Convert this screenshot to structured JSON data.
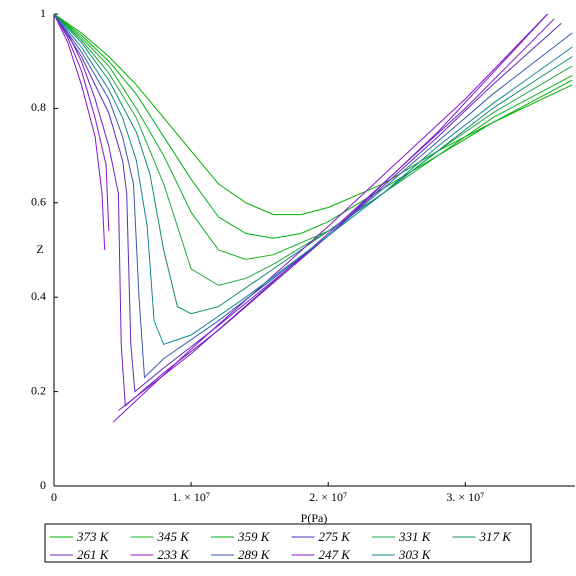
{
  "chart_data": {
    "type": "line",
    "x_label": "P(Pa)",
    "y_label": "Z",
    "xlim": [
      0,
      38000000
    ],
    "ylim": [
      0,
      1
    ],
    "xticks": [
      0,
      {
        "value": 10000000,
        "label": "1. × 10⁷"
      },
      {
        "value": 20000000,
        "label": "2. × 10⁷"
      },
      {
        "value": 30000000,
        "label": "3. × 10⁷"
      }
    ],
    "yticks": [
      0,
      0.2,
      0.4,
      0.6,
      0.8,
      1
    ],
    "legend": "bottom",
    "series": [
      {
        "name": "373 K",
        "color": "#00b000",
        "x": [
          0,
          2000000,
          4000000,
          6000000,
          8000000,
          10000000,
          12000000,
          14000000,
          16000000,
          18000000,
          20000000,
          24000000,
          28000000,
          32000000,
          37800000
        ],
        "values": [
          1,
          0.96,
          0.91,
          0.85,
          0.78,
          0.71,
          0.64,
          0.6,
          0.575,
          0.575,
          0.59,
          0.64,
          0.71,
          0.77,
          0.85
        ]
      },
      {
        "name": "345 K",
        "color": "#10b020",
        "x": [
          0,
          2000000,
          4000000,
          6000000,
          8000000,
          10000000,
          12000000,
          14000000,
          16000000,
          20000000,
          24000000,
          28000000,
          32000000,
          37800000
        ],
        "values": [
          1,
          0.95,
          0.89,
          0.8,
          0.7,
          0.58,
          0.5,
          0.48,
          0.49,
          0.54,
          0.62,
          0.7,
          0.78,
          0.87
        ]
      },
      {
        "name": "359 K",
        "color": "#00b010",
        "x": [
          0,
          2000000,
          4000000,
          6000000,
          8000000,
          10000000,
          12000000,
          14000000,
          16000000,
          18000000,
          20000000,
          24000000,
          28000000,
          32000000,
          37800000
        ],
        "values": [
          1,
          0.955,
          0.9,
          0.83,
          0.74,
          0.65,
          0.57,
          0.535,
          0.525,
          0.535,
          0.56,
          0.63,
          0.7,
          0.77,
          0.86
        ]
      },
      {
        "name": "275 K",
        "color": "#5a2cc0",
        "x": [
          0,
          2000000,
          4000000,
          5000000,
          5300000,
          5600000,
          5900000,
          8000000,
          12000000,
          20000000,
          28000000,
          32000000,
          37000000
        ],
        "values": [
          1,
          0.91,
          0.79,
          0.69,
          0.62,
          0.3,
          0.2,
          0.25,
          0.34,
          0.53,
          0.74,
          0.85,
          0.98
        ]
      },
      {
        "name": "331 K",
        "color": "#20a840",
        "x": [
          0,
          2000000,
          4000000,
          6000000,
          8000000,
          10000000,
          12000000,
          14000000,
          16000000,
          20000000,
          24000000,
          28000000,
          32000000,
          37800000
        ],
        "values": [
          1,
          0.945,
          0.875,
          0.78,
          0.64,
          0.46,
          0.425,
          0.44,
          0.47,
          0.54,
          0.62,
          0.71,
          0.79,
          0.89
        ]
      },
      {
        "name": "317 K",
        "color": "#108c70",
        "x": [
          0,
          2000000,
          4000000,
          6000000,
          7000000,
          8000000,
          9000000,
          10000000,
          12000000,
          16000000,
          20000000,
          24000000,
          28000000,
          32000000,
          37800000
        ],
        "values": [
          1,
          0.94,
          0.86,
          0.75,
          0.66,
          0.5,
          0.38,
          0.365,
          0.38,
          0.46,
          0.54,
          0.62,
          0.71,
          0.8,
          0.91
        ]
      },
      {
        "name": "261 K",
        "color": "#7020c8",
        "x": [
          0,
          1000000,
          2000000,
          3000000,
          4000000,
          4700000,
          4900000,
          5200000,
          8000000,
          12000000,
          20000000,
          28000000,
          36000000
        ],
        "values": [
          1,
          0.96,
          0.9,
          0.82,
          0.72,
          0.62,
          0.3,
          0.17,
          0.24,
          0.33,
          0.53,
          0.75,
          1
        ]
      },
      {
        "name": "233 K",
        "color": "#8c10d0",
        "x": [
          0,
          1000000,
          2000000,
          3000000,
          3500000,
          3700000,
          null,
          4300000,
          10000000,
          20000000,
          30000000,
          36000000
        ],
        "values": [
          1,
          0.94,
          0.85,
          0.74,
          0.62,
          0.5,
          null,
          0.135,
          0.29,
          0.55,
          0.82,
          1
        ]
      },
      {
        "name": "289 K",
        "color": "#3a5ab0",
        "x": [
          0,
          2000000,
          4000000,
          5000000,
          5800000,
          6200000,
          6600000,
          8000000,
          12000000,
          16000000,
          20000000,
          28000000,
          32000000,
          37800000
        ],
        "values": [
          1,
          0.92,
          0.82,
          0.74,
          0.64,
          0.4,
          0.23,
          0.27,
          0.35,
          0.44,
          0.53,
          0.73,
          0.83,
          0.96
        ]
      },
      {
        "name": "247 K",
        "color": "#8018cc",
        "x": [
          0,
          1000000,
          2000000,
          3000000,
          3800000,
          4000000,
          null,
          4700000,
          10000000,
          20000000,
          30000000,
          36500000
        ],
        "values": [
          1,
          0.95,
          0.88,
          0.78,
          0.68,
          0.54,
          null,
          0.16,
          0.28,
          0.535,
          0.8,
          0.99
        ]
      },
      {
        "name": "303 K",
        "color": "#108898",
        "x": [
          0,
          2000000,
          4000000,
          5000000,
          6000000,
          6800000,
          7300000,
          8000000,
          10000000,
          14000000,
          20000000,
          24000000,
          28000000,
          32000000,
          37800000
        ],
        "values": [
          1,
          0.93,
          0.84,
          0.78,
          0.69,
          0.55,
          0.35,
          0.3,
          0.32,
          0.4,
          0.53,
          0.62,
          0.72,
          0.81,
          0.93
        ]
      }
    ]
  }
}
